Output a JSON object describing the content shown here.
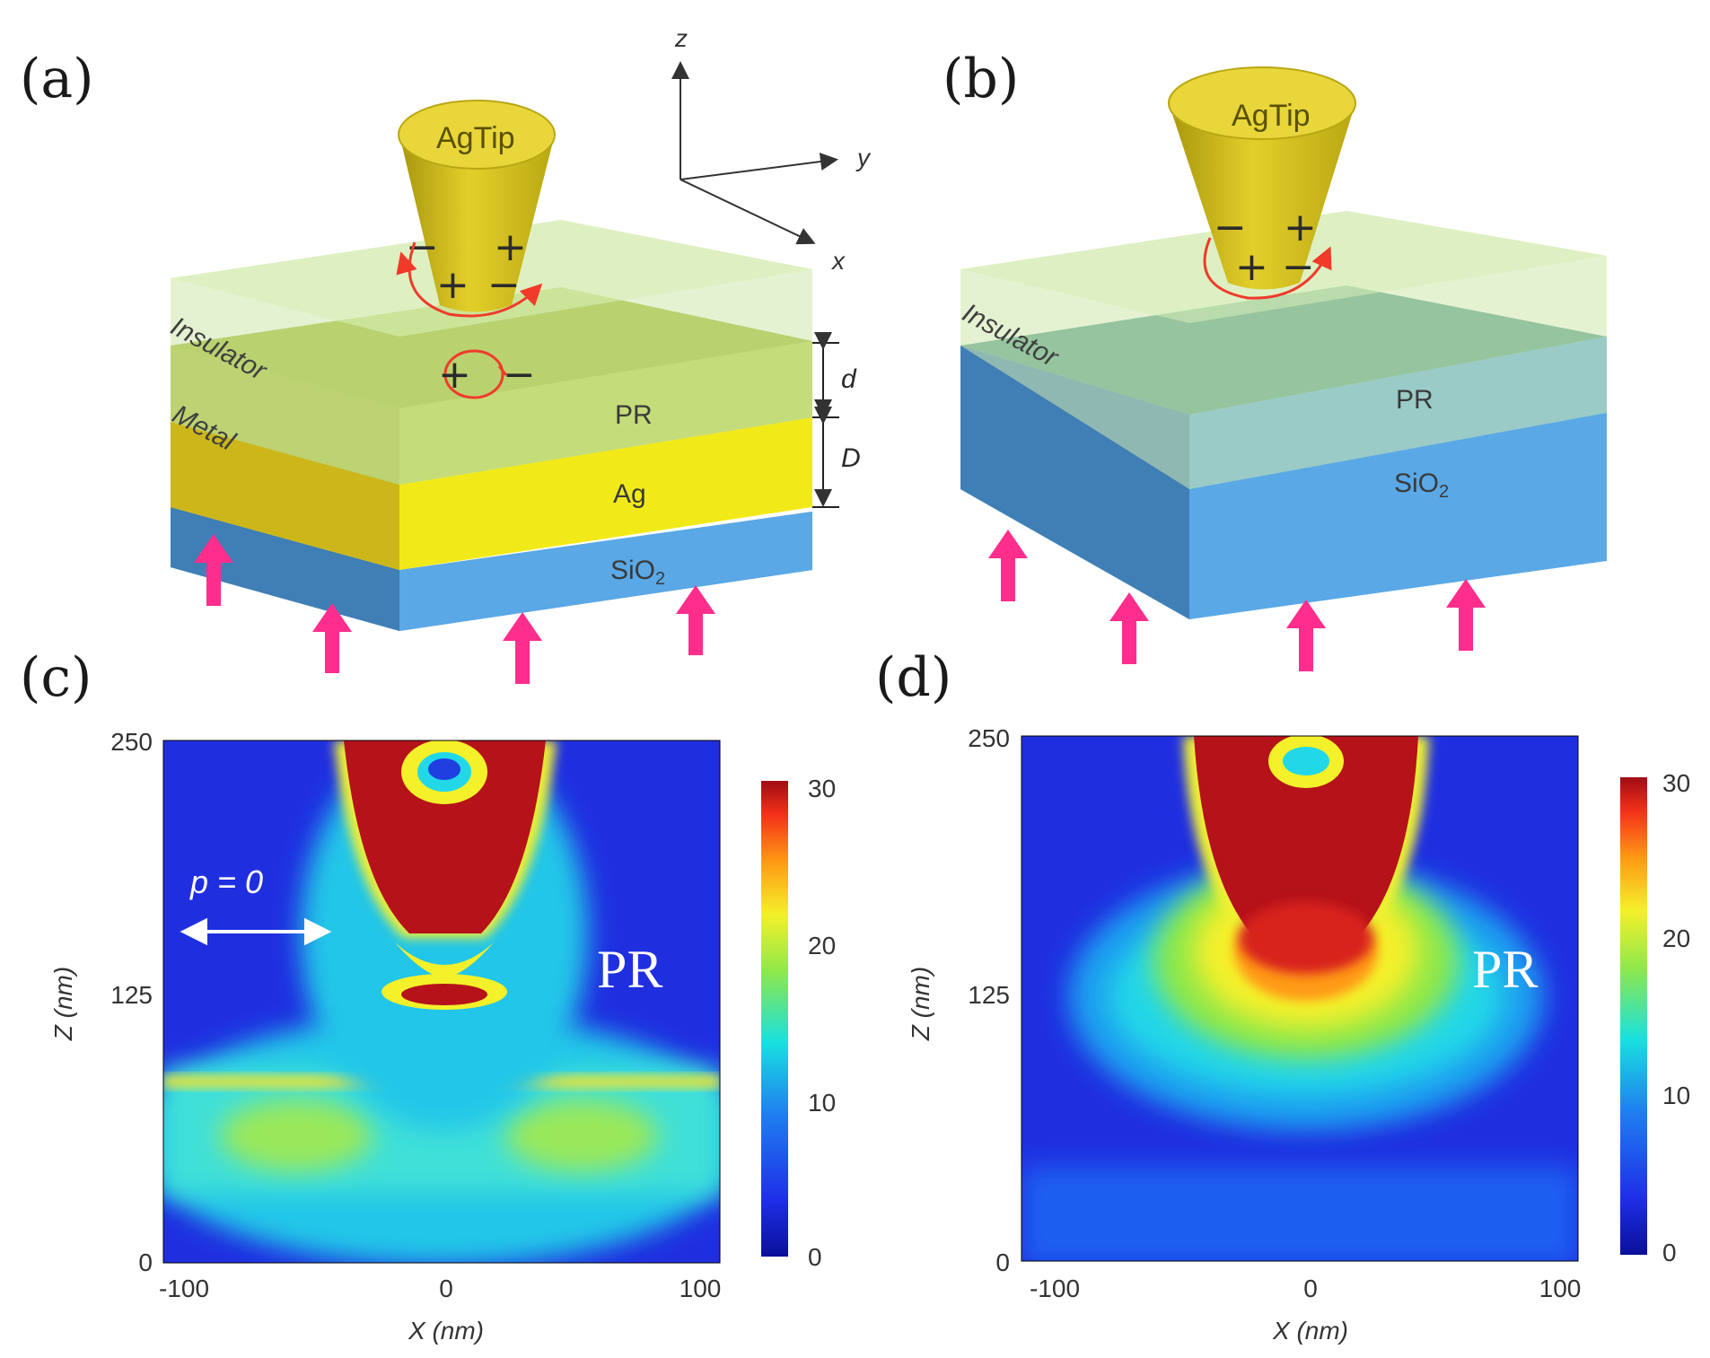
{
  "panel_a": {
    "label": "(a)",
    "tip": "AgTip",
    "insulator": "Insulator",
    "metal": "Metal",
    "pr": "PR",
    "ag": "Ag",
    "sio2": "SiO",
    "sio2_sub": "2",
    "d": "d",
    "D": "D",
    "axis_z": "z",
    "axis_y": "y",
    "axis_x": "x",
    "charges": [
      "−",
      "+",
      "+",
      "−",
      "+",
      "−"
    ]
  },
  "panel_b": {
    "label": "(b)",
    "tip": "AgTip",
    "insulator": "Insulator",
    "pr": "PR",
    "sio2": "SiO",
    "sio2_sub": "2",
    "charges": [
      "−",
      "+",
      "+",
      "−"
    ]
  },
  "panel_c": {
    "label": "(c)",
    "pr": "PR",
    "polarization": "p = 0",
    "xlabel": "X (nm)",
    "ylabel": "Z (nm)",
    "xticks": [
      "-100",
      "0",
      "100"
    ],
    "yticks": [
      "250",
      "125",
      "0"
    ],
    "cbar_ticks": [
      "30",
      "20",
      "10",
      "0"
    ]
  },
  "panel_d": {
    "label": "(d)",
    "pr": "PR",
    "xlabel": "X (nm)",
    "ylabel": "Z (nm)",
    "xticks": [
      "-100",
      "0",
      "100"
    ],
    "yticks": [
      "250",
      "125",
      "0"
    ],
    "cbar_ticks": [
      "30",
      "20",
      "10",
      "0"
    ]
  },
  "colors": {
    "tip": "#d6c21c",
    "insulator": "#c9e6a8",
    "metal": "#f2ea18",
    "substrate": "#5aa8e6",
    "arrow": "#ff2d8c",
    "charge_loop": "#f03a2a",
    "field_low": "#1f2fe0",
    "field_high": "#b5121a"
  }
}
